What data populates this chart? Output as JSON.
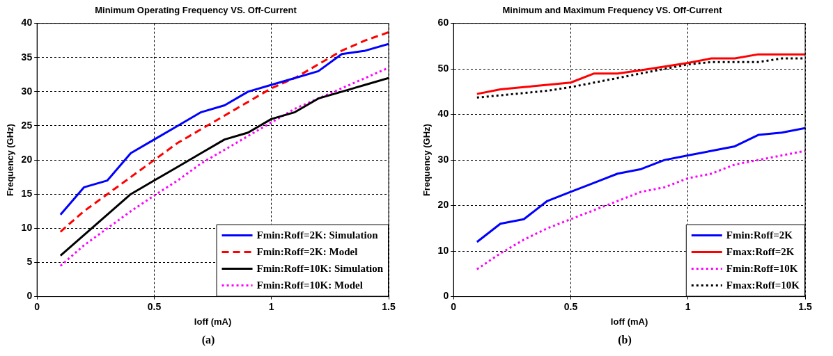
{
  "chart_data": [
    {
      "type": "line",
      "title": "Minimum Operating Frequency VS. Off-Current",
      "xlabel": "Ioff (mA)",
      "ylabel": "Frequency (GHz)",
      "x": [
        0.1,
        0.2,
        0.3,
        0.4,
        0.5,
        0.6,
        0.7,
        0.8,
        0.9,
        1.0,
        1.1,
        1.2,
        1.3,
        1.4,
        1.5
      ],
      "series": [
        {
          "name": "Fmin:Roff=2K: Simulation",
          "color": "#0000ff",
          "line_style": "solid",
          "values": [
            12,
            16,
            17,
            21,
            23,
            25,
            27,
            28,
            30,
            31,
            32,
            33,
            35.5,
            36,
            37
          ]
        },
        {
          "name": "Fmin:Roff=2K: Model",
          "color": "#ff0000",
          "line_style": "dashed",
          "values": [
            9.5,
            12.5,
            15,
            17.5,
            20,
            22.5,
            24.5,
            26.5,
            28.5,
            30.5,
            32,
            34,
            36,
            37.5,
            38.7
          ]
        },
        {
          "name": "Fmin:Roff=10K: Simulation",
          "color": "#000000",
          "line_style": "solid",
          "values": [
            6,
            9,
            12,
            15,
            17,
            19,
            21,
            23,
            24,
            26,
            27,
            29,
            30,
            31,
            32
          ]
        },
        {
          "name": "Fmin:Roff=10K: Model",
          "color": "#ff00ff",
          "line_style": "dotted",
          "values": [
            4.5,
            7.5,
            10,
            12.5,
            14.8,
            17,
            19.5,
            21.5,
            23.5,
            25.5,
            27.5,
            29,
            30.5,
            32,
            33.5
          ]
        }
      ],
      "xlim": [
        0,
        1.5
      ],
      "xticks": [
        0,
        0.5,
        1,
        1.5
      ],
      "ylim": [
        0,
        40
      ],
      "yticks": [
        0,
        5,
        10,
        15,
        20,
        25,
        30,
        35,
        40
      ],
      "grid": true,
      "legend": "bottom right",
      "marker": "none",
      "annotations": [
        "(a)"
      ]
    },
    {
      "type": "line",
      "title": "Minimum and Maximum Frequency VS. Off-Current",
      "xlabel": "Ioff (mA)",
      "ylabel": "Frequency (GHz)",
      "x": [
        0.1,
        0.2,
        0.3,
        0.4,
        0.5,
        0.6,
        0.7,
        0.8,
        0.9,
        1.0,
        1.1,
        1.2,
        1.3,
        1.4,
        1.5
      ],
      "series": [
        {
          "name": "Fmin:Roff=2K",
          "color": "#0000ff",
          "line_style": "solid",
          "values": [
            12,
            16,
            17,
            21,
            23,
            25,
            27,
            28,
            30,
            31,
            32,
            33,
            35.5,
            36,
            37
          ]
        },
        {
          "name": "Fmax:Roff=2K",
          "color": "#ff0000",
          "line_style": "solid",
          "values": [
            44.5,
            45.5,
            46,
            46.5,
            47,
            49,
            49,
            49.7,
            50.5,
            51.3,
            52.3,
            52.3,
            53.2,
            53.2,
            53.2
          ]
        },
        {
          "name": "Fmin:Roff=10K",
          "color": "#ff00ff",
          "line_style": "dotted",
          "values": [
            6,
            9.5,
            12.5,
            15,
            17,
            19,
            21,
            23,
            24,
            26,
            27,
            29,
            30,
            31,
            32
          ]
        },
        {
          "name": "Fmax:Roff=10K",
          "color": "#000000",
          "line_style": "dotted",
          "values": [
            43.7,
            44.2,
            44.7,
            45.2,
            46,
            47,
            48,
            49,
            50,
            51,
            51.5,
            51.5,
            51.5,
            52.3,
            52.3
          ]
        }
      ],
      "xlim": [
        0,
        1.5
      ],
      "xticks": [
        0,
        0.5,
        1,
        1.5
      ],
      "ylim": [
        0,
        60
      ],
      "yticks": [
        0,
        10,
        20,
        30,
        40,
        50,
        60
      ],
      "grid": true,
      "legend": "bottom right",
      "marker": "none",
      "annotations": [
        "(b)"
      ]
    }
  ]
}
